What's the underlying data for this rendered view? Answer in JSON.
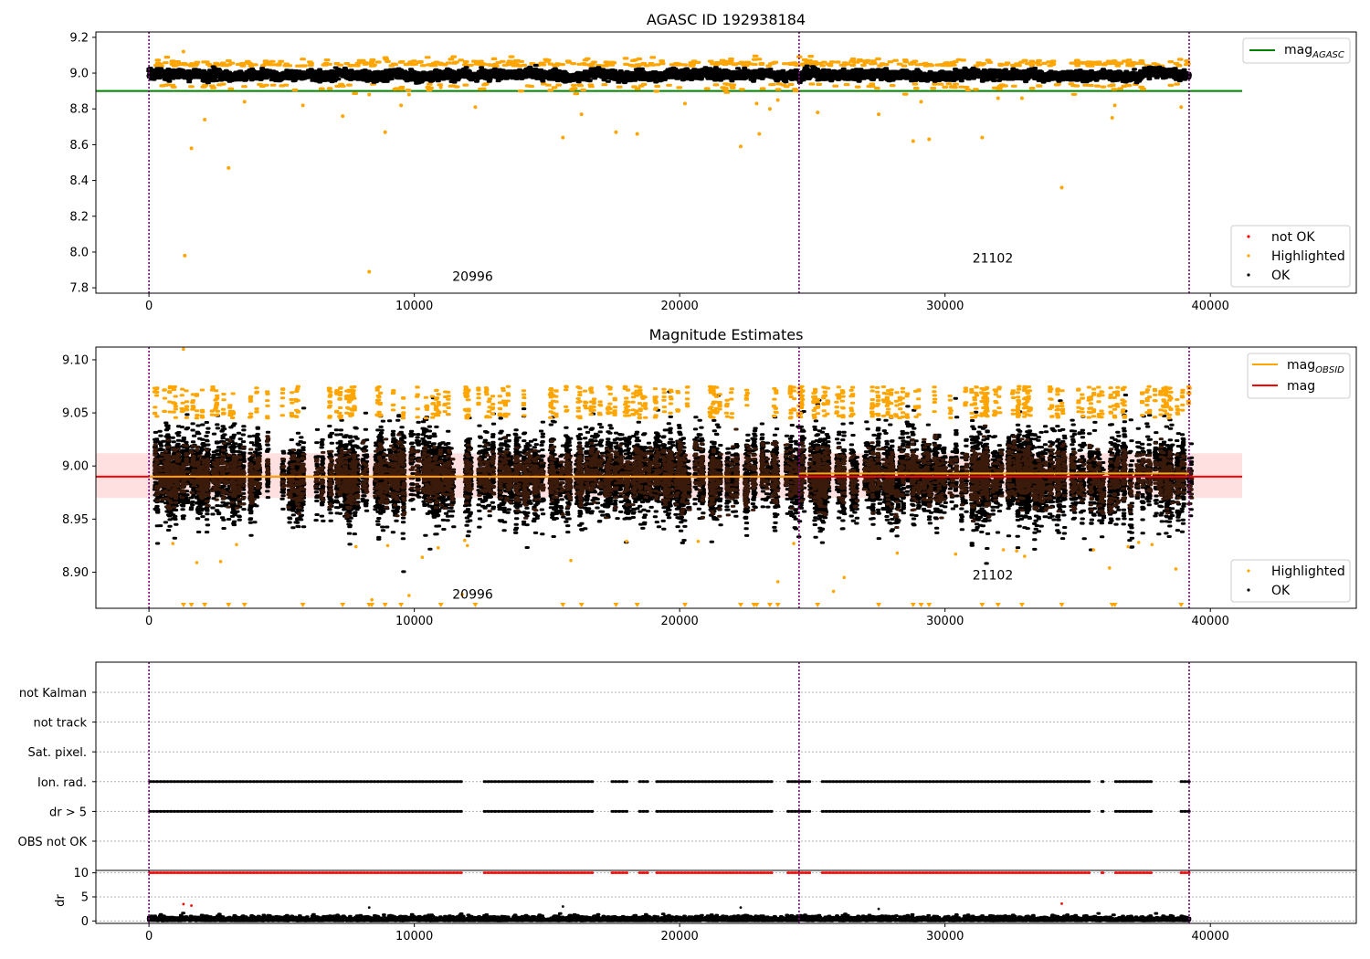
{
  "chart_data": [
    {
      "type": "scatter",
      "title": "AGASC ID 192938184",
      "xlim": [
        -2000,
        45500
      ],
      "ylim": [
        7.77,
        9.23
      ],
      "xticks": [
        0,
        10000,
        20000,
        30000,
        40000
      ],
      "yticks": [
        7.8,
        8.0,
        8.2,
        8.4,
        8.6,
        8.8,
        9.0,
        9.2
      ],
      "ytick_labels": [
        "7.8",
        "8.0",
        "8.2",
        "8.4",
        "8.6",
        "8.8",
        "9.0",
        "9.2"
      ],
      "obsid_boundaries": [
        0,
        24500,
        39200
      ],
      "obsid_labels": [
        {
          "text": "20996",
          "x": 12200,
          "y": 7.84
        },
        {
          "text": "21102",
          "x": 31800,
          "y": 7.94
        }
      ],
      "reference_line": {
        "name": "mag_AGASC",
        "value": 8.9,
        "x_range": [
          -2000,
          41200
        ],
        "color": "#008000"
      },
      "ok_band": {
        "center": 8.99,
        "halfwidth": 0.03
      },
      "highlighted_outliers": [
        [
          1300,
          9.12
        ],
        [
          1350,
          7.98
        ],
        [
          1600,
          8.58
        ],
        [
          2100,
          8.74
        ],
        [
          3000,
          8.47
        ],
        [
          3600,
          8.84
        ],
        [
          5800,
          8.82
        ],
        [
          7300,
          8.76
        ],
        [
          8300,
          7.89
        ],
        [
          8300,
          8.88
        ],
        [
          8900,
          8.67
        ],
        [
          9500,
          8.82
        ],
        [
          9800,
          8.88
        ],
        [
          11000,
          8.92
        ],
        [
          12300,
          8.81
        ],
        [
          15600,
          8.64
        ],
        [
          16300,
          8.77
        ],
        [
          17600,
          8.67
        ],
        [
          18400,
          8.66
        ],
        [
          20200,
          8.83
        ],
        [
          22300,
          8.59
        ],
        [
          22900,
          8.83
        ],
        [
          23000,
          8.66
        ],
        [
          23400,
          8.8
        ],
        [
          23700,
          8.85
        ],
        [
          25200,
          8.78
        ],
        [
          27500,
          8.77
        ],
        [
          28800,
          8.62
        ],
        [
          29100,
          8.84
        ],
        [
          29400,
          8.63
        ],
        [
          31400,
          8.64
        ],
        [
          32000,
          8.86
        ],
        [
          32900,
          8.86
        ],
        [
          34400,
          8.36
        ],
        [
          36300,
          8.75
        ],
        [
          36400,
          8.82
        ],
        [
          38900,
          8.81
        ]
      ],
      "legend_line": {
        "entries": [
          {
            "label": "mag",
            "sub": "AGASC",
            "color": "#008000"
          }
        ],
        "position": "top-right"
      },
      "legend_points": {
        "entries": [
          {
            "label": "not OK",
            "color": "#ff0000"
          },
          {
            "label": "Highlighted",
            "color": "#ffa500"
          },
          {
            "label": "OK",
            "color": "#000000"
          }
        ],
        "position": "bottom-right"
      }
    },
    {
      "type": "scatter",
      "title": "Magnitude Estimates",
      "xlim": [
        -2000,
        45500
      ],
      "ylim": [
        8.866,
        9.112
      ],
      "xticks": [
        0,
        10000,
        20000,
        30000,
        40000
      ],
      "yticks": [
        8.9,
        8.95,
        9.0,
        9.05,
        9.1
      ],
      "ytick_labels": [
        "8.90",
        "8.95",
        "9.00",
        "9.05",
        "9.10"
      ],
      "obsid_boundaries": [
        0,
        24500,
        39200
      ],
      "obsid_labels": [
        {
          "text": "20996",
          "x": 12200,
          "y": 8.875
        },
        {
          "text": "21102",
          "x": 31800,
          "y": 8.893
        }
      ],
      "mag": {
        "value": 8.99,
        "band": [
          8.97,
          9.012
        ],
        "x_range": [
          -2000,
          41200
        ],
        "color": "#ff0000"
      },
      "mag_obsid": [
        {
          "x_range": [
            0,
            24500
          ],
          "value": 8.99
        },
        {
          "x_range": [
            24500,
            39200
          ],
          "value": 8.993
        }
      ],
      "highlighted_outliers": [
        [
          900,
          8.927
        ],
        [
          1300,
          9.11
        ],
        [
          1800,
          8.909
        ],
        [
          2700,
          8.91
        ],
        [
          3300,
          8.926
        ],
        [
          7800,
          8.924
        ],
        [
          9000,
          8.925
        ],
        [
          10300,
          8.914
        ],
        [
          10900,
          8.923
        ],
        [
          11900,
          8.93
        ],
        [
          12000,
          8.925
        ],
        [
          15900,
          8.911
        ],
        [
          18000,
          8.929
        ],
        [
          20700,
          8.929
        ],
        [
          23700,
          8.891
        ],
        [
          24300,
          8.927
        ],
        [
          25800,
          8.882
        ],
        [
          26200,
          8.895
        ],
        [
          28200,
          8.918
        ],
        [
          30400,
          8.917
        ],
        [
          32200,
          8.921
        ],
        [
          32700,
          8.92
        ],
        [
          33000,
          8.915
        ],
        [
          35600,
          8.921
        ],
        [
          36200,
          8.904
        ],
        [
          36900,
          8.924
        ],
        [
          37300,
          8.928
        ],
        [
          37800,
          8.926
        ],
        [
          38700,
          8.903
        ],
        [
          9800,
          8.878
        ],
        [
          11800,
          8.879
        ],
        [
          8400,
          8.874
        ]
      ],
      "clipped_low_x": [
        1300,
        1600,
        2100,
        3000,
        3600,
        5800,
        7300,
        8300,
        8400,
        8900,
        9500,
        11000,
        12300,
        15600,
        16300,
        17600,
        18400,
        20200,
        22300,
        22800,
        22900,
        23400,
        23700,
        25200,
        27500,
        28800,
        29100,
        29400,
        31400,
        32000,
        32900,
        34400,
        36300,
        36400,
        38900
      ],
      "legend_line": {
        "entries": [
          {
            "label": "mag",
            "sub": "OBSID",
            "color": "#ffa500"
          },
          {
            "label": "mag",
            "sub": "",
            "color": "#ff0000"
          }
        ],
        "position": "top-right"
      },
      "legend_points": {
        "entries": [
          {
            "label": "Highlighted",
            "color": "#ffa500"
          },
          {
            "label": "OK",
            "color": "#000000"
          }
        ],
        "position": "bottom-right"
      }
    },
    {
      "type": "scatter",
      "title": "",
      "xlim": [
        -2000,
        45500
      ],
      "xticks": [
        0,
        10000,
        20000,
        30000,
        40000
      ],
      "flag_rows": [
        "not Kalman",
        "not track",
        "Sat. pixel.",
        "Ion. rad.",
        "dr > 5",
        "OBS not OK"
      ],
      "flagged_rows": [
        "Ion. rad.",
        "dr > 5"
      ],
      "flag_gaps": [
        [
          11800,
          12600
        ],
        [
          16800,
          17400
        ],
        [
          18000,
          18400
        ],
        [
          18800,
          19100
        ],
        [
          23500,
          24000
        ],
        [
          24900,
          25300
        ],
        [
          35500,
          35800
        ],
        [
          36000,
          36400
        ],
        [
          37800,
          38400
        ],
        [
          38500,
          38800
        ]
      ],
      "obsid_boundaries": [
        0,
        24500,
        39200
      ],
      "dr_panel": {
        "ylabel": "dr",
        "yticks": [
          0,
          5,
          10
        ],
        "ylim": [
          -0.5,
          10.5
        ],
        "clip_value": 10,
        "typical_range": [
          0,
          1.2
        ],
        "outliers": [
          [
            1300,
            3.5
          ],
          [
            1600,
            3.2
          ],
          [
            8300,
            2.8
          ],
          [
            15600,
            3.0
          ],
          [
            22300,
            2.8
          ],
          [
            27500,
            2.5
          ],
          [
            34400,
            3.6
          ]
        ]
      }
    }
  ]
}
